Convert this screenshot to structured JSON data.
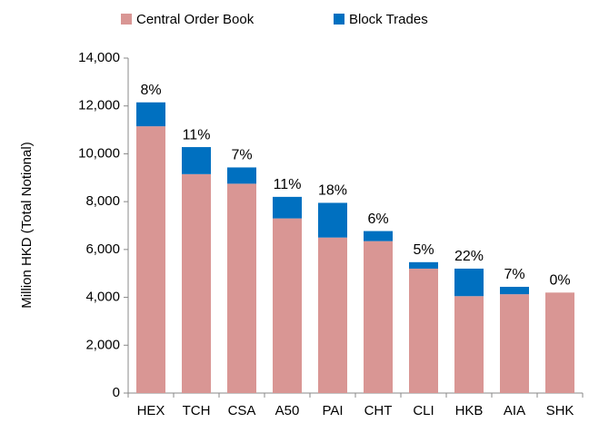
{
  "chart_data": {
    "type": "stacked_bar",
    "y_axis_label": "Million HKD (Total Notional)",
    "categories": [
      "HEX",
      "TCH",
      "CSA",
      "A50",
      "PAI",
      "CHT",
      "CLI",
      "HKB",
      "AIA",
      "SHK"
    ],
    "series": [
      {
        "name": "Central Order Book",
        "color": "#d99694",
        "values": [
          11150,
          9150,
          8750,
          7300,
          6500,
          6350,
          5200,
          4050,
          4130,
          4200
        ]
      },
      {
        "name": "Block Trades",
        "color": "#0070c0",
        "values": [
          1000,
          1130,
          680,
          900,
          1450,
          420,
          270,
          1150,
          310,
          0
        ]
      }
    ],
    "annotations": [
      "8%",
      "11%",
      "7%",
      "11%",
      "18%",
      "6%",
      "5%",
      "22%",
      "7%",
      "0%"
    ],
    "ylim": [
      0,
      14000
    ],
    "yticks": [
      0,
      {
        "value": 2000,
        "label": "2,000"
      },
      {
        "value": 4000,
        "label": "4,000"
      },
      {
        "value": 6000,
        "label": "6,000"
      },
      {
        "value": 8000,
        "label": "8,000"
      },
      {
        "value": 10000,
        "label": "10,000"
      },
      {
        "value": 12000,
        "label": "12,000"
      },
      {
        "value": 14000,
        "label": "14,000"
      }
    ],
    "legend": "top"
  }
}
